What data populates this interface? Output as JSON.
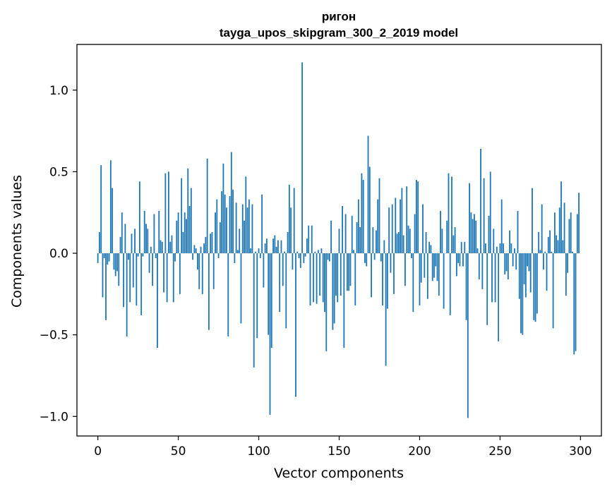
{
  "chart_data": {
    "type": "bar",
    "title_line1": "ригон",
    "title_line2": "tayga_upos_skipgram_300_2_2019 model",
    "xlabel": "Vector components",
    "ylabel": "Components values",
    "xlim": [
      -13,
      313
    ],
    "ylim": [
      -1.12,
      1.28
    ],
    "xticks": [
      0,
      50,
      100,
      150,
      200,
      250,
      300
    ],
    "xtick_labels": [
      "0",
      "50",
      "100",
      "150",
      "200",
      "250",
      "300"
    ],
    "yticks": [
      -1.0,
      -0.5,
      0.0,
      0.5,
      1.0
    ],
    "ytick_labels": [
      "−1.0",
      "−0.5",
      "0.0",
      "0.5",
      "1.0"
    ],
    "bar_color": "#1f77b4",
    "x": "0..299 (one bar per vector component)",
    "values": [
      -0.06,
      0.13,
      0.54,
      -0.27,
      -0.03,
      -0.41,
      -0.07,
      -0.05,
      0.57,
      0.4,
      -0.1,
      -0.14,
      -0.11,
      -0.2,
      0.1,
      0.25,
      -0.33,
      0.18,
      -0.51,
      -0.04,
      -0.3,
      0.12,
      -0.21,
      0.15,
      -0.32,
      -0.02,
      0.44,
      -0.38,
      -0.02,
      0.26,
      0.18,
      0.15,
      -0.12,
      0.04,
      -0.2,
      0.24,
      -0.03,
      -0.58,
      0.26,
      0.08,
      0.07,
      -0.24,
      0.49,
      -0.3,
      0.5,
      0.07,
      0.11,
      -0.3,
      -0.05,
      0.2,
      0.25,
      -0.25,
      0.46,
      0.13,
      0.25,
      0.21,
      0.52,
      0.29,
      0.4,
      -0.04,
      0.05,
      0.03,
      -0.1,
      -0.22,
      0.04,
      -0.25,
      0.06,
      0.1,
      0.58,
      -0.47,
      0.12,
      0.13,
      -0.22,
      0.25,
      0.33,
      -0.03,
      0.19,
      0.38,
      0.55,
      0.36,
      0.28,
      -0.51,
      0.35,
      0.62,
      0.39,
      -0.06,
      0.31,
      0.02,
      0.15,
      -0.43,
      0.3,
      0.2,
      0.47,
      0.28,
      0.33,
      0.03,
      0.3,
      -0.7,
      0.01,
      -0.52,
      0.03,
      -0.03,
      0.36,
      -0.21,
      0.06,
      0.09,
      -0.5,
      -0.99,
      -0.58,
      0.09,
      0.11,
      0.04,
      0.08,
      -0.36,
      0.08,
      -0.2,
      0.01,
      -0.46,
      0.13,
      0.42,
      0.28,
      -0.1,
      0.4,
      -0.88,
      0.01,
      -0.03,
      -0.09,
      1.17,
      -0.06,
      -0.02,
      0.09,
      0.17,
      -0.32,
      0.17,
      -0.3,
      0.01,
      -0.31,
      0.02,
      -0.26,
      0.03,
      -0.3,
      -0.36,
      -0.6,
      -0.04,
      -0.05,
      0.2,
      -0.47,
      -0.43,
      -0.26,
      -0.3,
      0.15,
      -0.26,
      0.29,
      -0.58,
      0.24,
      -0.23,
      -0.23,
      -0.2,
      0.23,
      0.02,
      -0.32,
      0.19,
      0.33,
      0.16,
      0.49,
      0.45,
      -0.06,
      -0.08,
      0.72,
      0.53,
      -0.27,
      0.16,
      -0.04,
      0.14,
      0.33,
      0.46,
      -0.05,
      -0.32,
      0.08,
      -0.69,
      -0.34,
      0.28,
      -0.12,
      0.3,
      -0.25,
      0.34,
      0.12,
      0.13,
      0.33,
      0.4,
      0.11,
      -0.2,
      0.41,
      0.17,
      0.15,
      -0.03,
      -0.36,
      0.24,
      0.45,
      0.44,
      -0.32,
      -0.18,
      0.3,
      -0.15,
      0.13,
      -0.28,
      0.07,
      0.05,
      -0.17,
      -0.15,
      -0.08,
      -0.17,
      -0.26,
      0.26,
      0.15,
      -0.34,
      0.0,
      0.2,
      0.49,
      -0.38,
      0.47,
      0.11,
      0.16,
      -0.14,
      -0.06,
      -0.08,
      0.07,
      -0.08,
      0.07,
      -0.41,
      -1.01,
      0.43,
      0.25,
      0.21,
      0.24,
      0.2,
      0.03,
      -0.16,
      0.64,
      -0.22,
      0.46,
      0.06,
      -0.44,
      0.23,
      0.5,
      -0.3,
      0.15,
      -0.3,
      0.04,
      -0.54,
      0.06,
      0.33,
      0.06,
      -0.13,
      -0.11,
      -0.16,
      0.14,
      0.06,
      -0.08,
      0.03,
      -0.1,
      0.26,
      -0.28,
      -0.49,
      -0.5,
      -0.19,
      -0.27,
      -0.08,
      -0.11,
      -0.24,
      0.4,
      -0.41,
      -0.42,
      -0.37,
      0.13,
      0.02,
      0.3,
      -0.1,
      0.01,
      -0.23,
      0.1,
      0.14,
      0.01,
      -0.46,
      0.25,
      0.11,
      0.08,
      0.28,
      0.44,
      0.08,
      0.31,
      -0.26,
      -0.12,
      0.21,
      0.25,
      0.01,
      -0.62,
      -0.6,
      0.24,
      0.37
    ]
  }
}
